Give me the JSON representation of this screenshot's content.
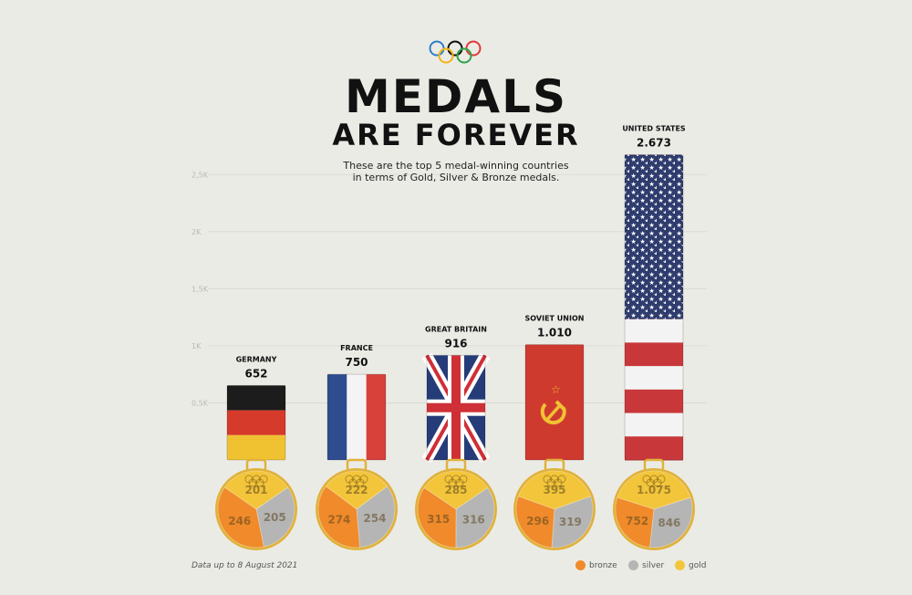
{
  "header": {
    "title_line1": "MEDALS",
    "title_line2": "ARE FOREVER",
    "subtitle_line1": "These are the top 5 medal-winning countries",
    "subtitle_line2": "in terms of Gold, Silver & Bronze medals."
  },
  "footnote": "Data up to 8 August 2021",
  "legend": {
    "bronze": {
      "label": "bronze",
      "color": "#f08a2a"
    },
    "silver": {
      "label": "silver",
      "color": "#b5b5b5"
    },
    "gold": {
      "label": "gold",
      "color": "#f3c53a"
    }
  },
  "colors": {
    "background": "#ebebe6",
    "gridline": "#d8d8d2",
    "tick_label": "#b8b8b2",
    "ribbon_edge": "#8a7a40",
    "medal_rim": "#e0b23b"
  },
  "chart_data": {
    "type": "bar",
    "ylim": [
      0,
      2750
    ],
    "yticks": [
      500,
      1000,
      1500,
      2000,
      2500
    ],
    "ytick_labels": [
      "0,5K",
      "1K",
      "1,5K",
      "2K",
      "2,5K"
    ],
    "grid": true,
    "categories": [
      "GERMANY",
      "FRANCE",
      "GREAT BRITAIN",
      "SOVIET UNION",
      "UNITED STATES"
    ],
    "totals": [
      652,
      750,
      916,
      1010,
      2673
    ],
    "total_labels": [
      "652",
      "750",
      "916",
      "1.010",
      "2.673"
    ],
    "flags": [
      "germany-flag",
      "france-flag",
      "great-britain-flag",
      "soviet-union-flag",
      "united-states-flag"
    ],
    "series": [
      {
        "name": "gold",
        "values": [
          201,
          222,
          285,
          395,
          1075
        ],
        "labels": [
          "201",
          "222",
          "285",
          "395",
          "1.075"
        ]
      },
      {
        "name": "silver",
        "values": [
          205,
          254,
          316,
          319,
          846
        ],
        "labels": [
          "205",
          "254",
          "316",
          "319",
          "846"
        ]
      },
      {
        "name": "bronze",
        "values": [
          246,
          274,
          315,
          296,
          752
        ],
        "labels": [
          "246",
          "274",
          "315",
          "296",
          "752"
        ]
      }
    ]
  }
}
